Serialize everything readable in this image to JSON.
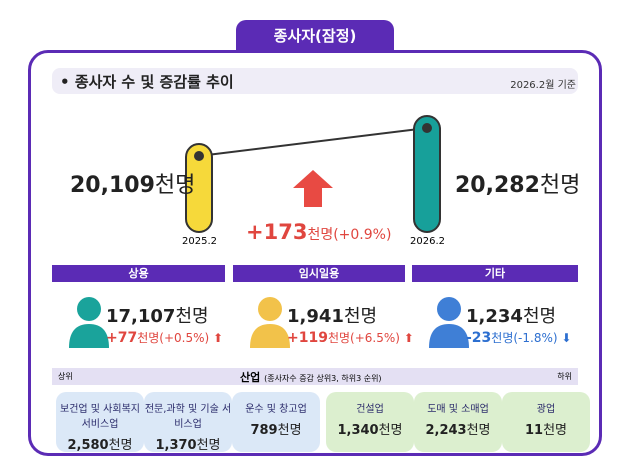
{
  "tab": "종사자(잠정)",
  "header": {
    "title": "종사자 수 및 증감률 추이",
    "basis": "2026.2월 기준"
  },
  "trend": {
    "left": {
      "value": "20,109",
      "unit": "천명",
      "period": "2025.2"
    },
    "right": {
      "value": "20,282",
      "unit": "천명",
      "period": "2026.2"
    },
    "change": {
      "amount": "+173",
      "rest": "천명(+0.9%)"
    }
  },
  "groups": [
    {
      "label": "상용",
      "value": "17,107",
      "unit": "천명",
      "change": "+77",
      "change_rest": "천명(+0.5%)"
    },
    {
      "label": "임시일용",
      "value": "1,941",
      "unit": "천명",
      "change": "+119",
      "change_rest": "천명(+6.5%)"
    },
    {
      "label": "기타",
      "value": "1,234",
      "unit": "천명",
      "change": "-23",
      "change_rest": "천명(-1.8%)"
    }
  ],
  "industry": {
    "top_label": "상위",
    "title": "산업",
    "note": "(종사자수 증감 상위3, 하위3 순위)",
    "bottom_label": "하위",
    "cards": [
      {
        "name": "보건업 및 사회복지 서비스업",
        "value": "2,580",
        "unit": "천명"
      },
      {
        "name": "전문,과학 및 기술 서비스업",
        "value": "1,370",
        "unit": "천명"
      },
      {
        "name": "운수 및 창고업",
        "value": "789",
        "unit": "천명"
      },
      {
        "name": "건설업",
        "value": "1,340",
        "unit": "천명"
      },
      {
        "name": "도매 및 소매업",
        "value": "2,243",
        "unit": "천명"
      },
      {
        "name": "광업",
        "value": "11",
        "unit": "천명"
      }
    ]
  }
}
